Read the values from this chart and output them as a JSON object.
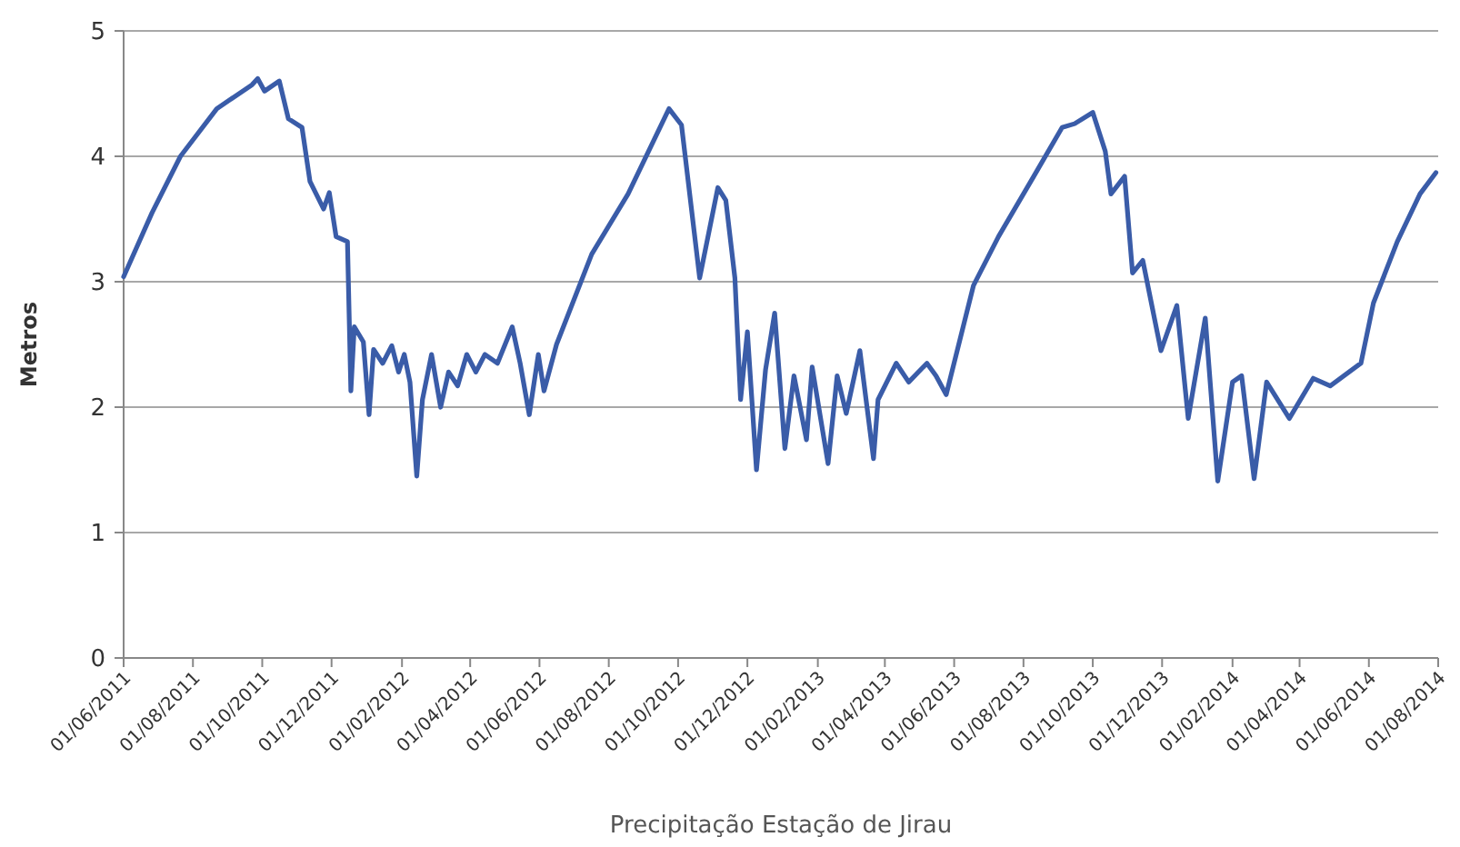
{
  "chart_data": {
    "type": "line",
    "xlabel": "Precipitação Estação de Jirau",
    "ylabel": "Metros",
    "xlim": [
      "2011-06-01",
      "2014-08-01"
    ],
    "ylim": [
      0,
      5
    ],
    "yticks": [
      0,
      1,
      2,
      3,
      4,
      5
    ],
    "xticks": [
      {
        "value": "2011-06-01",
        "label": "01/06/2011"
      },
      {
        "value": "2011-08-01",
        "label": "01/08/2011"
      },
      {
        "value": "2011-10-01",
        "label": "01/10/2011"
      },
      {
        "value": "2011-12-01",
        "label": "01/12/2011"
      },
      {
        "value": "2012-02-01",
        "label": "01/02/2012"
      },
      {
        "value": "2012-04-01",
        "label": "01/04/2012"
      },
      {
        "value": "2012-06-01",
        "label": "01/06/2012"
      },
      {
        "value": "2012-08-01",
        "label": "01/08/2012"
      },
      {
        "value": "2012-10-01",
        "label": "01/10/2012"
      },
      {
        "value": "2012-12-01",
        "label": "01/12/2012"
      },
      {
        "value": "2013-02-01",
        "label": "01/02/2013"
      },
      {
        "value": "2013-04-01",
        "label": "01/04/2013"
      },
      {
        "value": "2013-06-01",
        "label": "01/06/2013"
      },
      {
        "value": "2013-08-01",
        "label": "01/08/2013"
      },
      {
        "value": "2013-10-01",
        "label": "01/10/2013"
      },
      {
        "value": "2013-12-01",
        "label": "01/12/2013"
      },
      {
        "value": "2014-02-01",
        "label": "01/02/2014"
      },
      {
        "value": "2014-04-01",
        "label": "01/04/2014"
      },
      {
        "value": "2014-06-01",
        "label": "01/06/2014"
      },
      {
        "value": "2014-08-01",
        "label": "01/08/2014"
      }
    ],
    "grid": "y",
    "marker": "none",
    "line_style": "solid",
    "x": [
      "2011-06-01",
      "2011-06-26",
      "2011-07-21",
      "2011-08-22",
      "2011-09-22",
      "2011-09-27",
      "2011-10-03",
      "2011-10-16",
      "2011-10-24",
      "2011-11-05",
      "2011-11-12",
      "2011-11-24",
      "2011-11-29",
      "2011-12-05",
      "2011-12-15",
      "2011-12-18",
      "2011-12-21",
      "2011-12-29",
      "2012-01-03",
      "2012-01-07",
      "2012-01-15",
      "2012-01-23",
      "2012-01-29",
      "2012-02-03",
      "2012-02-08",
      "2012-02-14",
      "2012-02-19",
      "2012-02-27",
      "2012-03-06",
      "2012-03-13",
      "2012-03-21",
      "2012-03-29",
      "2012-04-06",
      "2012-04-14",
      "2012-04-25",
      "2012-05-08",
      "2012-05-15",
      "2012-05-23",
      "2012-05-31",
      "2012-06-05",
      "2012-06-16",
      "2012-07-17",
      "2012-08-18",
      "2012-09-23",
      "2012-10-04",
      "2012-10-20",
      "2012-11-05",
      "2012-11-12",
      "2012-11-20",
      "2012-11-25",
      "2012-12-01",
      "2012-12-09",
      "2012-12-17",
      "2012-12-25",
      "2013-01-03",
      "2013-01-11",
      "2013-01-22",
      "2013-01-27",
      "2013-02-10",
      "2013-02-18",
      "2013-02-26",
      "2013-03-10",
      "2013-03-22",
      "2013-03-26",
      "2013-04-11",
      "2013-04-22",
      "2013-05-08",
      "2013-05-16",
      "2013-05-25",
      "2013-06-18",
      "2013-07-10",
      "2013-08-10",
      "2013-09-04",
      "2013-09-15",
      "2013-10-01",
      "2013-10-12",
      "2013-10-17",
      "2013-10-29",
      "2013-11-05",
      "2013-11-14",
      "2013-11-30",
      "2013-12-14",
      "2013-12-24",
      "2014-01-08",
      "2014-01-19",
      "2014-02-01",
      "2014-02-09",
      "2014-02-20",
      "2014-03-03",
      "2014-03-23",
      "2014-04-13",
      "2014-04-28",
      "2014-05-25",
      "2014-06-05",
      "2014-06-26",
      "2014-07-16",
      "2014-07-30"
    ],
    "series": [
      {
        "color": "#3a5ca8",
        "values": [
          3.04,
          3.55,
          4.0,
          4.38,
          4.57,
          4.62,
          4.52,
          4.6,
          4.3,
          4.23,
          3.8,
          3.58,
          3.71,
          3.36,
          3.32,
          2.13,
          2.64,
          2.52,
          1.94,
          2.46,
          2.35,
          2.49,
          2.28,
          2.42,
          2.2,
          1.45,
          2.06,
          2.42,
          2.0,
          2.28,
          2.17,
          2.42,
          2.28,
          2.42,
          2.35,
          2.64,
          2.35,
          1.94,
          2.42,
          2.13,
          2.5,
          3.22,
          3.7,
          4.38,
          4.25,
          3.03,
          3.75,
          3.65,
          3.03,
          2.06,
          2.6,
          1.5,
          2.3,
          2.75,
          1.67,
          2.25,
          1.74,
          2.32,
          1.55,
          2.25,
          1.95,
          2.45,
          1.59,
          2.06,
          2.35,
          2.2,
          2.35,
          2.25,
          2.1,
          2.97,
          3.36,
          3.84,
          4.23,
          4.26,
          4.35,
          4.04,
          3.7,
          3.84,
          3.07,
          3.17,
          2.45,
          2.81,
          1.91,
          2.71,
          1.41,
          2.2,
          2.25,
          1.43,
          2.2,
          1.91,
          2.23,
          2.17,
          2.35,
          2.83,
          3.32,
          3.7,
          3.87
        ]
      }
    ]
  }
}
